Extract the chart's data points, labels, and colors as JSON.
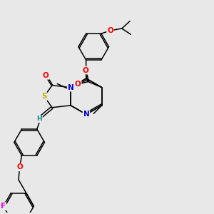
{
  "bg_color": "#e8e8e8",
  "fig_size": [
    3.0,
    3.0
  ],
  "dpi": 100,
  "bond_color": "#000000",
  "bond_lw": 1.1,
  "atom_colors": {
    "O": "#ff0000",
    "N": "#0000cd",
    "S": "#b8b800",
    "F": "#ee00ee",
    "H": "#008888",
    "C": "#000000"
  },
  "xlim": [
    0,
    10
  ],
  "ylim": [
    0,
    10
  ]
}
